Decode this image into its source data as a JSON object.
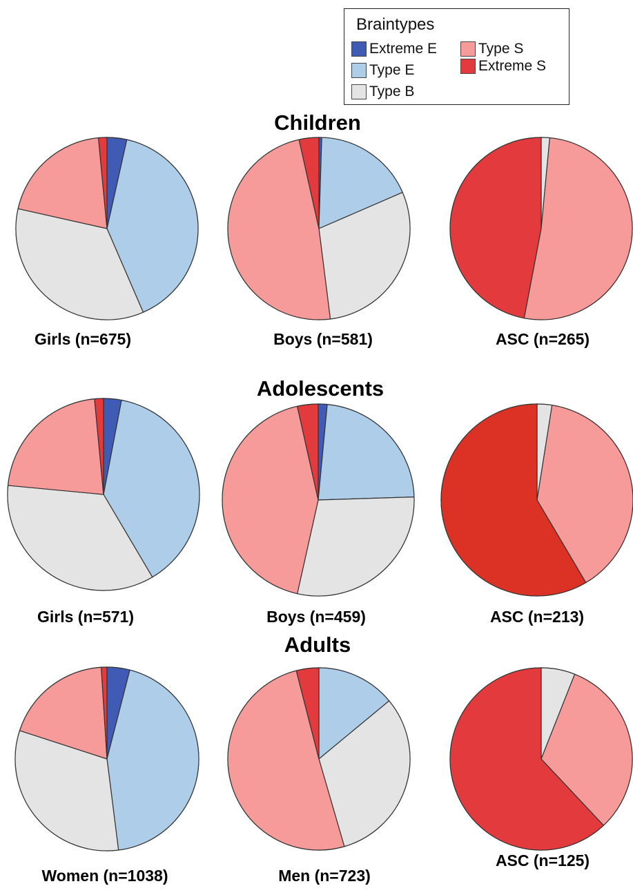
{
  "legend": {
    "title": "Braintypes",
    "items": [
      {
        "label": "Extreme E",
        "color": "#3f5bb4"
      },
      {
        "label": "Type E",
        "color": "#aecde8"
      },
      {
        "label": "Type B",
        "color": "#e4e4e4"
      },
      {
        "label": "Type S",
        "color": "#f79a9a"
      },
      {
        "label": "Extreme S",
        "color": "#e33a3e"
      }
    ]
  },
  "chart_data": [
    {
      "type": "pie",
      "group": "Children",
      "title": "Girls (n=675)",
      "categories": [
        "Extreme E",
        "Type E",
        "Type B",
        "Type S",
        "Extreme S"
      ],
      "values": [
        3.5,
        40.0,
        35.0,
        20.0,
        1.5
      ]
    },
    {
      "type": "pie",
      "group": "Children",
      "title": "Boys (n=581)",
      "categories": [
        "Extreme E",
        "Type E",
        "Type B",
        "Type S",
        "Extreme S"
      ],
      "values": [
        0.5,
        18.0,
        29.5,
        48.5,
        3.5
      ]
    },
    {
      "type": "pie",
      "group": "Children",
      "title": "ASC (n=265)",
      "categories": [
        "Extreme E",
        "Type E",
        "Type B",
        "Type S",
        "Extreme S"
      ],
      "values": [
        0,
        0,
        1.5,
        51.5,
        47.0
      ]
    },
    {
      "type": "pie",
      "group": "Adolescents",
      "title": "Girls (n=571)",
      "categories": [
        "Extreme E",
        "Type E",
        "Type B",
        "Type S",
        "Extreme S"
      ],
      "values": [
        3.0,
        38.5,
        35.0,
        22.0,
        1.5
      ]
    },
    {
      "type": "pie",
      "group": "Adolescents",
      "title": "Boys (n=459)",
      "categories": [
        "Extreme E",
        "Type E",
        "Type B",
        "Type S",
        "Extreme S"
      ],
      "values": [
        1.5,
        23.0,
        29.0,
        43.0,
        3.5
      ]
    },
    {
      "type": "pie",
      "group": "Adolescents",
      "title": "ASC (n=213)",
      "categories": [
        "Extreme E",
        "Type E",
        "Type B",
        "Type S",
        "Extreme S"
      ],
      "values": [
        0,
        0,
        2.5,
        39.0,
        58.5
      ],
      "colors": [
        "#3f5bb4",
        "#aecde8",
        "#e4e4e4",
        "#f79a9a",
        "#dc3226"
      ]
    },
    {
      "type": "pie",
      "group": "Adults",
      "title": "Women (n=1038)",
      "categories": [
        "Extreme E",
        "Type E",
        "Type B",
        "Type S",
        "Extreme S"
      ],
      "values": [
        4.0,
        44.0,
        32.0,
        19.0,
        1.0
      ]
    },
    {
      "type": "pie",
      "group": "Adults",
      "title": "Men (n=723)",
      "categories": [
        "Extreme E",
        "Type E",
        "Type B",
        "Type S",
        "Extreme S"
      ],
      "values": [
        0,
        14.0,
        31.5,
        50.5,
        4.0
      ]
    },
    {
      "type": "pie",
      "group": "Adults",
      "title": "ASC (n=125)",
      "categories": [
        "Extreme E",
        "Type E",
        "Type B",
        "Type S",
        "Extreme S"
      ],
      "values": [
        0,
        0,
        6.0,
        32.0,
        62.0
      ]
    }
  ],
  "groups": {
    "children": "Children",
    "adolescents": "Adolescents",
    "adults": "Adults"
  }
}
